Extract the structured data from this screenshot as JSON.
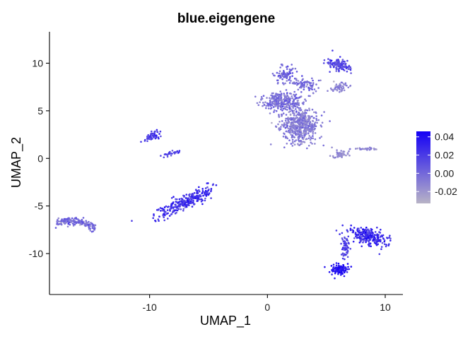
{
  "chart_data": {
    "type": "scatter",
    "title": "blue.eigengene",
    "xlabel": "UMAP_1",
    "ylabel": "UMAP_2",
    "xlim": [
      -18.5,
      11.5
    ],
    "ylim": [
      -14.3,
      13.3
    ],
    "x_ticks": [
      -10,
      0,
      10
    ],
    "y_ticks": [
      -10,
      -5,
      0,
      5,
      10
    ],
    "grid": false,
    "legend": {
      "placement": "right",
      "type": "colorbar",
      "range": [
        -0.033,
        0.046
      ],
      "ticks": [
        0.04,
        0.02,
        0.0,
        -0.02
      ],
      "tick_labels": [
        "0.04",
        "0.02",
        "0.00",
        "-0.02"
      ],
      "colors": {
        "low": "#b8b3c6",
        "high": "#1400f5"
      }
    },
    "point_size": 2.6,
    "clusters": [
      {
        "label": "",
        "center": [
          -16.2,
          -6.6
        ],
        "spread": [
          1.2,
          0.4
        ],
        "angle": -10,
        "n": 170,
        "value_mean": 0.0,
        "value_sd": 0.008,
        "shape": "crescent"
      },
      {
        "label": "",
        "center": [
          -7.0,
          -4.6
        ],
        "spread": [
          2.1,
          0.55
        ],
        "angle": 32,
        "n": 300,
        "value_mean": 0.025,
        "value_sd": 0.01,
        "shape": "blob"
      },
      {
        "label": "",
        "center": [
          -9.8,
          2.3
        ],
        "spread": [
          0.6,
          0.35
        ],
        "angle": 35,
        "n": 60,
        "value_mean": 0.02,
        "value_sd": 0.008,
        "shape": "blob"
      },
      {
        "label": "",
        "center": [
          -8.3,
          0.5
        ],
        "spread": [
          0.6,
          0.18
        ],
        "angle": 15,
        "n": 30,
        "value_mean": 0.018,
        "value_sd": 0.008,
        "shape": "blob"
      },
      {
        "label": "",
        "center": [
          2.8,
          3.5
        ],
        "spread": [
          1.3,
          1.6
        ],
        "angle": 0,
        "n": 520,
        "value_mean": -0.008,
        "value_sd": 0.008,
        "shape": "blob"
      },
      {
        "label": "",
        "center": [
          1.2,
          6.0
        ],
        "spread": [
          1.4,
          0.8
        ],
        "angle": 0,
        "n": 260,
        "value_mean": -0.002,
        "value_sd": 0.008,
        "shape": "blob"
      },
      {
        "label": "",
        "center": [
          1.5,
          8.8
        ],
        "spread": [
          0.6,
          0.9
        ],
        "angle": 0,
        "n": 90,
        "value_mean": 0.002,
        "value_sd": 0.008,
        "shape": "blob"
      },
      {
        "label": "",
        "center": [
          3.2,
          7.8
        ],
        "spread": [
          1.0,
          0.6
        ],
        "angle": 0,
        "n": 80,
        "value_mean": 0.0,
        "value_sd": 0.008,
        "shape": "blob"
      },
      {
        "label": "",
        "center": [
          6.0,
          9.8
        ],
        "spread": [
          0.5,
          0.9
        ],
        "angle": 60,
        "n": 120,
        "value_mean": 0.014,
        "value_sd": 0.009,
        "shape": "blob"
      },
      {
        "label": "",
        "center": [
          6.2,
          7.5
        ],
        "spread": [
          0.6,
          0.4
        ],
        "angle": 0,
        "n": 50,
        "value_mean": -0.012,
        "value_sd": 0.006,
        "shape": "blob"
      },
      {
        "label": "",
        "center": [
          6.2,
          0.4
        ],
        "spread": [
          0.6,
          0.35
        ],
        "angle": 0,
        "n": 45,
        "value_mean": -0.015,
        "value_sd": 0.005,
        "shape": "blob"
      },
      {
        "label": "",
        "center": [
          8.2,
          1.0
        ],
        "spread": [
          0.8,
          0.12
        ],
        "angle": 0,
        "n": 30,
        "value_mean": -0.014,
        "value_sd": 0.005,
        "shape": "blob"
      },
      {
        "label": "",
        "center": [
          8.6,
          -8.2
        ],
        "spread": [
          1.5,
          0.7
        ],
        "angle": -20,
        "n": 240,
        "value_mean": 0.025,
        "value_sd": 0.01,
        "shape": "blob"
      },
      {
        "label": "",
        "center": [
          6.6,
          -9.5
        ],
        "spread": [
          0.25,
          1.0
        ],
        "angle": 0,
        "n": 60,
        "value_mean": 0.02,
        "value_sd": 0.009,
        "shape": "blob"
      },
      {
        "label": "",
        "center": [
          6.1,
          -11.7
        ],
        "spread": [
          0.6,
          0.45
        ],
        "angle": 0,
        "n": 130,
        "value_mean": 0.038,
        "value_sd": 0.006,
        "shape": "blob"
      }
    ]
  }
}
